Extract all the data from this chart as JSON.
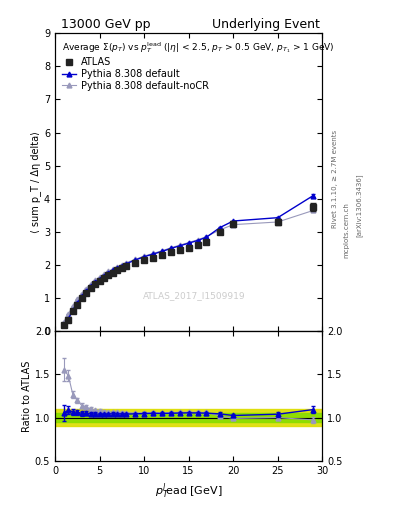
{
  "title_left": "13000 GeV pp",
  "title_right": "Underlying Event",
  "right_label1": "Rivet 3.1.10, ≥ 2.7M events",
  "right_label2": "mcplots.cern.ch [arXiv:1306.3436]",
  "watermark": "ATLAS_2017_I1509919",
  "ylabel_main": "⟨ sum p_T / Δη delta⟩",
  "ylabel_ratio": "Ratio to ATLAS",
  "xlabel": "p$_T^l$ead [GeV]",
  "ylim_main": [
    0,
    9
  ],
  "ylim_ratio": [
    0.5,
    2.0
  ],
  "xlim": [
    0,
    30
  ],
  "atlas_x": [
    1.0,
    1.5,
    2.0,
    2.5,
    3.0,
    3.5,
    4.0,
    4.5,
    5.0,
    5.5,
    6.0,
    6.5,
    7.0,
    7.5,
    8.0,
    9.0,
    10.0,
    11.0,
    12.0,
    13.0,
    14.0,
    15.0,
    16.0,
    17.0,
    18.5,
    20.0,
    25.0,
    29.0
  ],
  "atlas_y": [
    0.18,
    0.35,
    0.6,
    0.8,
    1.0,
    1.15,
    1.3,
    1.42,
    1.52,
    1.62,
    1.7,
    1.77,
    1.84,
    1.9,
    1.96,
    2.06,
    2.15,
    2.22,
    2.3,
    2.38,
    2.45,
    2.52,
    2.6,
    2.7,
    3.0,
    3.25,
    3.3,
    3.75
  ],
  "atlas_yerr": [
    0.015,
    0.015,
    0.02,
    0.02,
    0.025,
    0.025,
    0.025,
    0.025,
    0.025,
    0.025,
    0.025,
    0.025,
    0.025,
    0.025,
    0.025,
    0.025,
    0.03,
    0.03,
    0.03,
    0.03,
    0.03,
    0.03,
    0.04,
    0.04,
    0.06,
    0.07,
    0.09,
    0.12
  ],
  "py_default_x": [
    1.0,
    1.5,
    2.0,
    2.5,
    3.0,
    3.5,
    4.0,
    4.5,
    5.0,
    5.5,
    6.0,
    6.5,
    7.0,
    7.5,
    8.0,
    9.0,
    10.0,
    11.0,
    12.0,
    13.0,
    14.0,
    15.0,
    16.0,
    17.0,
    18.5,
    20.0,
    25.0,
    29.0
  ],
  "py_default_y": [
    0.19,
    0.38,
    0.64,
    0.85,
    1.05,
    1.21,
    1.36,
    1.48,
    1.58,
    1.68,
    1.77,
    1.85,
    1.92,
    1.98,
    2.04,
    2.15,
    2.25,
    2.33,
    2.41,
    2.5,
    2.58,
    2.66,
    2.74,
    2.84,
    3.13,
    3.33,
    3.43,
    4.1
  ],
  "py_default_yerr": [
    0.005,
    0.005,
    0.005,
    0.005,
    0.005,
    0.005,
    0.005,
    0.005,
    0.005,
    0.005,
    0.005,
    0.005,
    0.005,
    0.005,
    0.005,
    0.005,
    0.005,
    0.005,
    0.005,
    0.005,
    0.005,
    0.005,
    0.01,
    0.01,
    0.015,
    0.015,
    0.02,
    0.05
  ],
  "py_nocr_x": [
    1.0,
    1.5,
    2.0,
    2.5,
    3.0,
    3.5,
    4.0,
    4.5,
    5.0,
    5.5,
    6.0,
    6.5,
    7.0,
    7.5,
    8.0,
    9.0,
    10.0,
    11.0,
    12.0,
    13.0,
    14.0,
    15.0,
    16.0,
    17.0,
    18.5,
    20.0,
    25.0,
    29.0
  ],
  "py_nocr_y": [
    0.28,
    0.52,
    0.76,
    0.96,
    1.14,
    1.29,
    1.43,
    1.54,
    1.64,
    1.73,
    1.81,
    1.88,
    1.95,
    2.01,
    2.07,
    2.17,
    2.27,
    2.35,
    2.43,
    2.52,
    2.6,
    2.68,
    2.76,
    2.86,
    3.06,
    3.22,
    3.3,
    3.65
  ],
  "py_nocr_yerr": [
    0.005,
    0.005,
    0.005,
    0.005,
    0.005,
    0.005,
    0.005,
    0.005,
    0.005,
    0.005,
    0.005,
    0.005,
    0.005,
    0.005,
    0.005,
    0.005,
    0.005,
    0.005,
    0.005,
    0.005,
    0.005,
    0.005,
    0.01,
    0.01,
    0.015,
    0.015,
    0.02,
    0.05
  ],
  "color_atlas": "#222222",
  "color_default": "#0000cc",
  "color_nocr": "#9999bb",
  "band_green": "#88dd00",
  "band_yellow": "#dddd00",
  "green_band_hw": 0.05,
  "yellow_band_hw": 0.1,
  "legend_fs": 7.0,
  "legend_title_fs": 6.5
}
